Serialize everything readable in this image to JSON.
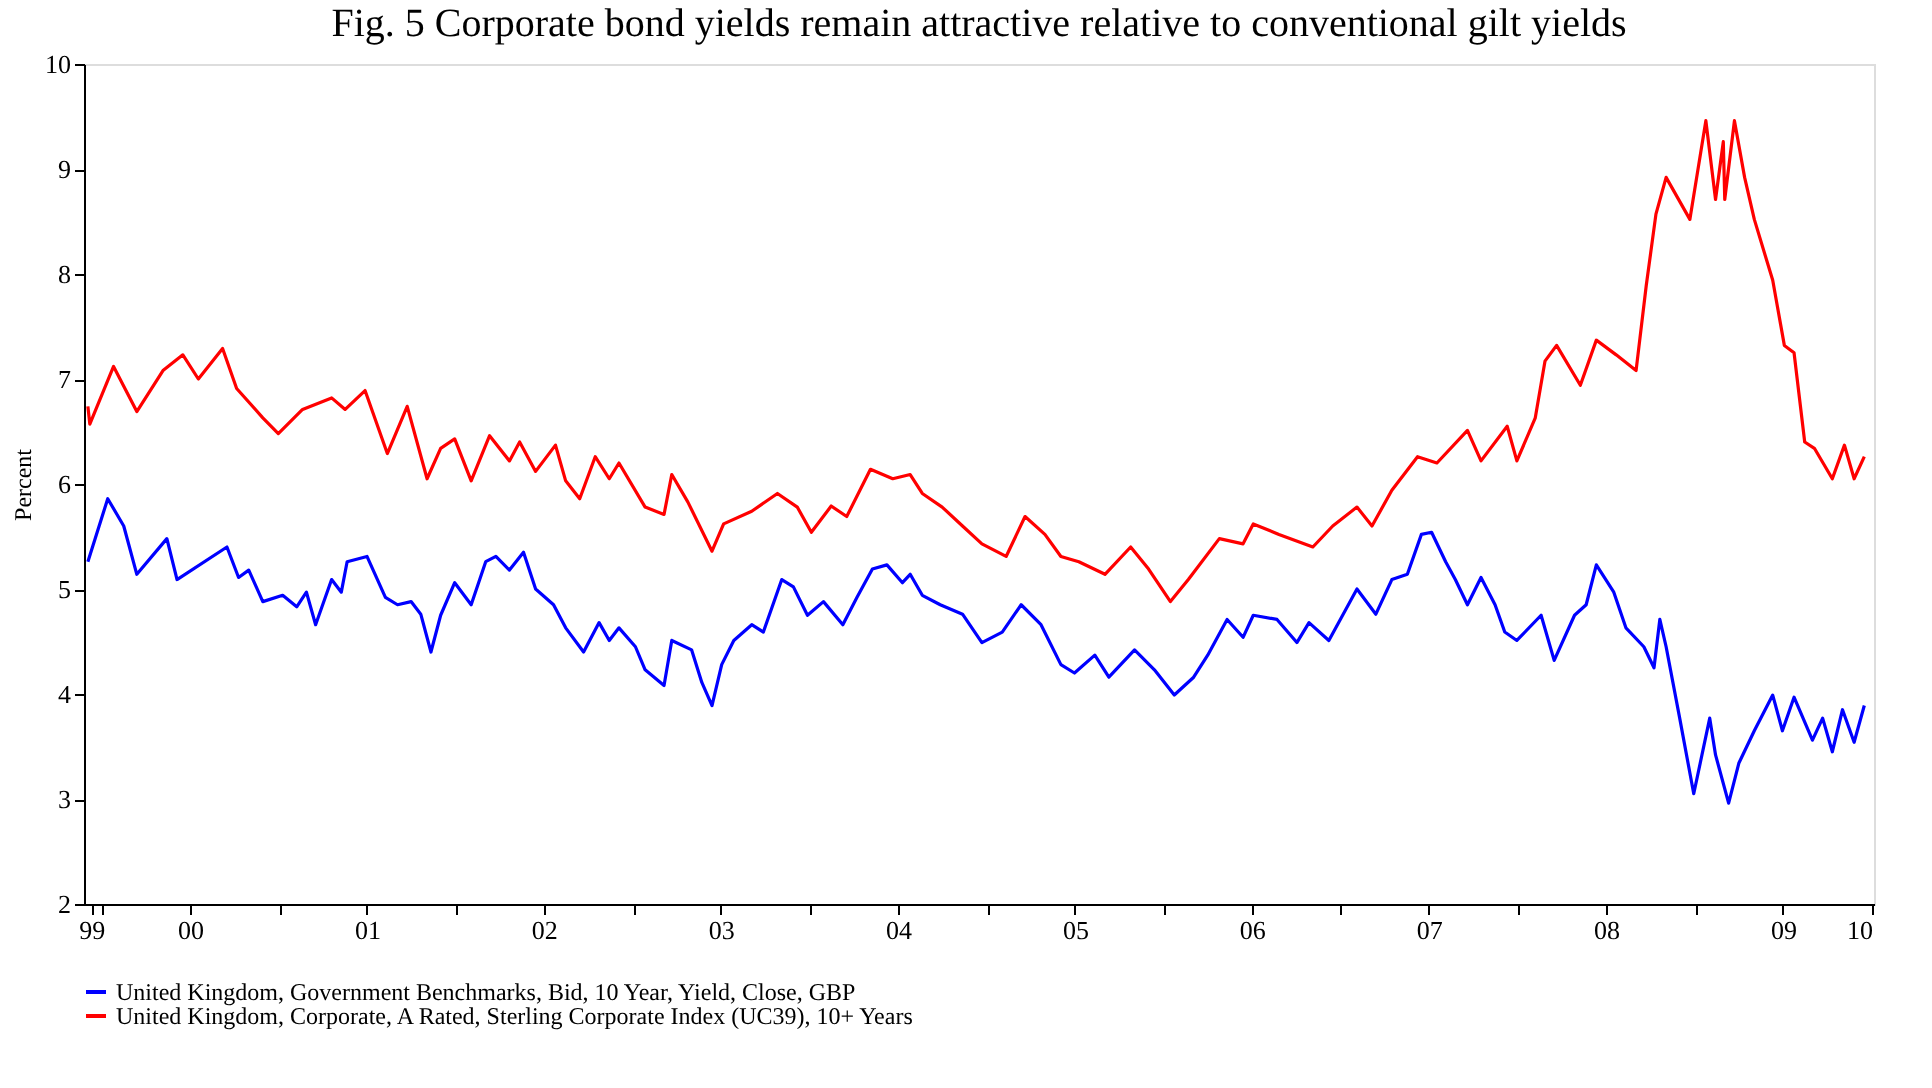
{
  "chart_data": {
    "type": "line",
    "title": "Fig. 5 Corporate bond yields remain attractive relative to conventional gilt yields",
    "ylabel": "Percent",
    "xlim": [
      "1999-11-25",
      "2010-01-05"
    ],
    "xticks": [
      {
        "value": "1999-12-10",
        "label": "99"
      },
      {
        "value": "2000-01-01",
        "label": null
      },
      {
        "value": "2000-07-01",
        "label": "00"
      },
      {
        "value": "2001-01-01",
        "label": null
      },
      {
        "value": "2001-07-01",
        "label": "01"
      },
      {
        "value": "2002-01-01",
        "label": null
      },
      {
        "value": "2002-07-01",
        "label": "02"
      },
      {
        "value": "2003-01-01",
        "label": null
      },
      {
        "value": "2003-07-01",
        "label": "03"
      },
      {
        "value": "2004-01-01",
        "label": null
      },
      {
        "value": "2004-07-01",
        "label": "04"
      },
      {
        "value": "2005-01-01",
        "label": null
      },
      {
        "value": "2005-07-01",
        "label": "05"
      },
      {
        "value": "2006-01-01",
        "label": null
      },
      {
        "value": "2006-07-01",
        "label": "06"
      },
      {
        "value": "2007-01-01",
        "label": null
      },
      {
        "value": "2007-07-01",
        "label": "07"
      },
      {
        "value": "2008-01-01",
        "label": null
      },
      {
        "value": "2008-07-01",
        "label": "08"
      },
      {
        "value": "2009-01-01",
        "label": null
      },
      {
        "value": "2009-07-01",
        "label": "09"
      },
      {
        "value": "2010-01-01",
        "label": "10"
      }
    ],
    "ylim": [
      2,
      10
    ],
    "yticks": [
      2,
      3,
      4,
      5,
      6,
      7,
      8,
      9,
      10
    ],
    "grid": false,
    "legend": "bottom",
    "series": [
      {
        "name": "United Kingdom, Government Benchmarks, Bid, 10 Year, Yield, Close, GBP",
        "color": "#0000ff",
        "x": [
          "1999-12-03",
          "2000-01-13",
          "2000-02-15",
          "2000-03-13",
          "2000-05-14",
          "2000-06-04",
          "2000-09-15",
          "2000-10-09",
          "2000-10-30",
          "2000-11-28",
          "2001-01-08",
          "2001-02-06",
          "2001-02-26",
          "2001-03-17",
          "2001-04-19",
          "2001-05-09",
          "2001-05-21",
          "2001-07-01",
          "2001-08-08",
          "2001-09-02",
          "2001-09-30",
          "2001-10-20",
          "2001-11-10",
          "2001-11-30",
          "2001-12-29",
          "2002-02-01",
          "2002-03-03",
          "2002-03-24",
          "2002-04-21",
          "2002-05-20",
          "2002-06-14",
          "2002-07-21",
          "2002-08-15",
          "2002-09-21",
          "2002-10-23",
          "2002-11-13",
          "2002-12-03",
          "2003-01-06",
          "2003-01-26",
          "2003-03-06",
          "2003-03-22",
          "2003-05-02",
          "2003-05-23",
          "2003-06-13",
          "2003-07-03",
          "2003-07-28",
          "2003-09-03",
          "2003-09-27",
          "2003-11-04",
          "2003-11-28",
          "2003-12-27",
          "2004-01-29",
          "2004-03-09",
          "2004-04-07",
          "2004-05-09",
          "2004-06-08",
          "2004-07-10",
          "2004-07-26",
          "2004-08-20",
          "2004-09-26",
          "2004-11-11",
          "2004-12-21",
          "2005-02-01",
          "2005-03-12",
          "2005-04-22",
          "2005-06-02",
          "2005-06-30",
          "2005-08-11",
          "2005-09-09",
          "2005-11-01",
          "2005-12-12",
          "2006-01-22",
          "2006-03-03",
          "2006-04-01",
          "2006-05-11",
          "2006-06-13",
          "2006-07-04",
          "2006-08-22",
          "2006-10-02",
          "2006-10-27",
          "2006-12-07",
          "2007-02-03",
          "2007-03-14",
          "2007-04-16",
          "2007-05-18",
          "2007-06-16",
          "2007-07-07",
          "2007-08-05",
          "2007-08-25",
          "2007-09-19",
          "2007-10-17",
          "2007-11-15",
          "2007-12-05",
          "2007-12-30",
          "2008-02-18",
          "2008-03-16",
          "2008-04-27",
          "2008-05-21",
          "2008-06-11",
          "2008-07-17",
          "2008-08-11",
          "2008-09-17",
          "2008-10-08",
          "2008-10-20",
          "2008-11-02",
          "2008-11-30",
          "2008-12-29",
          "2009-01-31",
          "2009-02-12",
          "2009-03-11",
          "2009-04-01",
          "2009-05-03",
          "2009-06-10",
          "2009-06-30",
          "2009-07-24",
          "2009-08-31",
          "2009-09-21",
          "2009-10-11",
          "2009-11-01",
          "2009-11-25",
          "2009-12-16"
        ],
        "values": [
          5.26,
          5.86,
          5.6,
          5.14,
          5.48,
          5.09,
          5.4,
          5.11,
          5.18,
          4.88,
          4.94,
          4.83,
          4.97,
          4.66,
          5.09,
          4.97,
          5.26,
          5.31,
          4.92,
          4.85,
          4.88,
          4.76,
          4.4,
          4.75,
          5.06,
          4.85,
          5.26,
          5.31,
          5.18,
          5.35,
          5.0,
          4.85,
          4.63,
          4.4,
          4.68,
          4.51,
          4.63,
          4.45,
          4.23,
          4.08,
          4.51,
          4.42,
          4.11,
          3.89,
          4.28,
          4.51,
          4.66,
          4.59,
          5.09,
          5.02,
          4.75,
          4.88,
          4.66,
          4.92,
          5.19,
          5.23,
          5.06,
          5.14,
          4.94,
          4.85,
          4.76,
          4.49,
          4.59,
          4.85,
          4.66,
          4.28,
          4.2,
          4.37,
          4.16,
          4.42,
          4.23,
          3.99,
          4.16,
          4.37,
          4.71,
          4.54,
          4.75,
          4.71,
          4.49,
          4.68,
          4.51,
          5.0,
          4.76,
          5.09,
          5.14,
          5.52,
          5.54,
          5.26,
          5.09,
          4.85,
          5.11,
          4.85,
          4.59,
          4.51,
          4.75,
          4.32,
          4.75,
          4.85,
          5.23,
          4.97,
          4.63,
          4.45,
          4.25,
          4.71,
          4.45,
          3.77,
          3.05,
          3.77,
          3.42,
          2.96,
          3.34,
          3.65,
          3.99,
          3.65,
          3.97,
          3.56,
          3.77,
          3.45,
          3.85,
          3.54,
          3.89
        ]
      },
      {
        "name": "United Kingdom, Corporate, A Rated, Sterling Corporate Index (UC39), 10+ Years",
        "color": "#ff0000",
        "x": [
          "1999-12-03",
          "1999-12-07",
          "2000-01-25",
          "2000-03-13",
          "2000-05-06",
          "2000-06-16",
          "2000-07-18",
          "2000-09-06",
          "2000-10-05",
          "2000-11-28",
          "2000-12-30",
          "2001-02-18",
          "2001-04-19",
          "2001-05-17",
          "2001-06-27",
          "2001-08-12",
          "2001-09-22",
          "2001-11-02",
          "2001-11-30",
          "2001-12-29",
          "2002-02-01",
          "2002-03-11",
          "2002-04-21",
          "2002-05-12",
          "2002-06-14",
          "2002-07-25",
          "2002-08-15",
          "2002-09-13",
          "2002-10-15",
          "2002-11-13",
          "2002-12-03",
          "2003-01-26",
          "2003-03-06",
          "2003-03-22",
          "2003-04-24",
          "2003-06-13",
          "2003-07-07",
          "2003-09-03",
          "2003-10-26",
          "2003-12-06",
          "2004-01-04",
          "2004-02-14",
          "2004-03-17",
          "2004-05-05",
          "2004-06-20",
          "2004-07-26",
          "2004-08-20",
          "2004-09-30",
          "2004-11-11",
          "2004-12-21",
          "2005-02-09",
          "2005-03-20",
          "2005-04-30",
          "2005-06-02",
          "2005-07-09",
          "2005-09-01",
          "2005-10-24",
          "2005-11-30",
          "2006-01-14",
          "2006-02-20",
          "2006-04-25",
          "2006-06-13",
          "2006-07-04",
          "2006-08-26",
          "2006-11-04",
          "2006-12-15",
          "2007-02-03",
          "2007-03-06",
          "2007-04-16",
          "2007-06-08",
          "2007-07-18",
          "2007-09-19",
          "2007-10-17",
          "2007-12-10",
          "2007-12-30",
          "2008-02-06",
          "2008-02-26",
          "2008-03-21",
          "2008-05-09",
          "2008-06-11",
          "2008-07-22",
          "2008-09-01",
          "2008-09-22",
          "2008-10-12",
          "2008-11-02",
          "2008-12-21",
          "2009-01-23",
          "2009-02-12",
          "2009-02-28",
          "2009-03-03",
          "2009-03-23",
          "2009-04-13",
          "2009-05-03",
          "2009-06-10",
          "2009-07-04",
          "2009-07-24",
          "2009-08-15",
          "2009-09-04",
          "2009-10-11",
          "2009-11-05",
          "2009-11-25",
          "2009-12-16"
        ],
        "values": [
          6.74,
          6.57,
          7.12,
          6.69,
          7.08,
          7.23,
          7.0,
          7.29,
          6.91,
          6.63,
          6.48,
          6.71,
          6.82,
          6.71,
          6.89,
          6.29,
          6.74,
          6.05,
          6.34,
          6.43,
          6.03,
          6.46,
          6.22,
          6.4,
          6.12,
          6.37,
          6.03,
          5.86,
          6.26,
          6.05,
          6.2,
          5.78,
          5.71,
          6.09,
          5.83,
          5.36,
          5.62,
          5.74,
          5.91,
          5.78,
          5.54,
          5.79,
          5.69,
          6.14,
          6.05,
          6.09,
          5.91,
          5.78,
          5.6,
          5.43,
          5.31,
          5.69,
          5.52,
          5.31,
          5.26,
          5.14,
          5.4,
          5.19,
          4.88,
          5.09,
          5.48,
          5.43,
          5.62,
          5.52,
          5.4,
          5.6,
          5.78,
          5.6,
          5.94,
          6.26,
          6.2,
          6.51,
          6.22,
          6.55,
          6.22,
          6.63,
          7.17,
          7.32,
          6.94,
          7.37,
          7.23,
          7.08,
          7.89,
          8.57,
          8.92,
          8.52,
          9.46,
          8.71,
          9.26,
          8.71,
          9.46,
          8.92,
          8.52,
          7.94,
          7.32,
          7.25,
          6.4,
          6.34,
          6.05,
          6.37,
          6.05,
          6.26
        ]
      }
    ]
  }
}
